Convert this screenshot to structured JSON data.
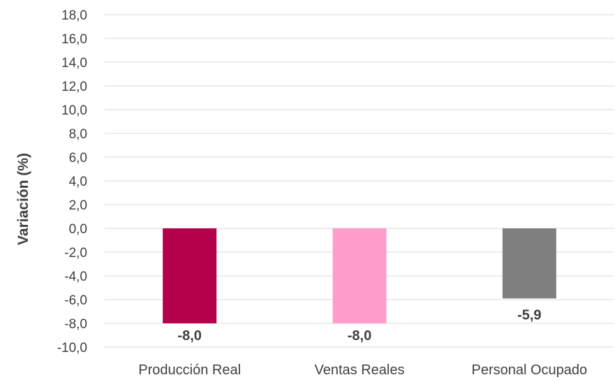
{
  "chart_data": {
    "type": "bar",
    "title": "",
    "xlabel": "",
    "ylabel": "Variación (%)",
    "ylim": [
      -10.0,
      18.0
    ],
    "ytick_step": 2.0,
    "ytick_labels": [
      "18,0",
      "16,0",
      "14,0",
      "12,0",
      "10,0",
      "8,0",
      "6,0",
      "4,0",
      "2,0",
      "0,0",
      "-2,0",
      "-4,0",
      "-6,0",
      "-8,0",
      "-10,0"
    ],
    "grid": true,
    "legend": "none",
    "categories": [
      "Producción Real",
      "Ventas Reales",
      "Personal Ocupado"
    ],
    "values": [
      -8.0,
      -8.0,
      -5.9
    ],
    "data_labels": [
      "-8,0",
      "-8,0",
      "-5,9"
    ],
    "bar_colors": [
      "#b5004b",
      "#ff9ccc",
      "#7f7f7f"
    ],
    "gridline_color": "#d9d9d9",
    "text_color": "#404040"
  }
}
